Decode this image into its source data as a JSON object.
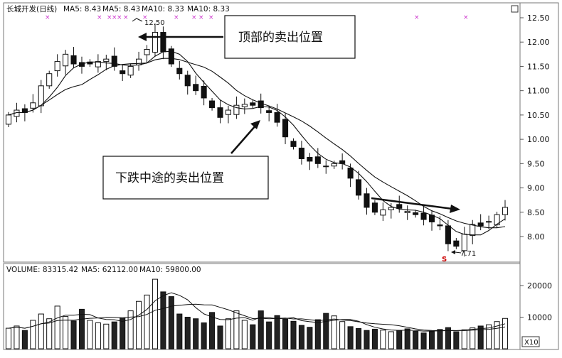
{
  "header": {
    "name": "长城开发(日线)",
    "ma_items": [
      "MA5: 8.43",
      "MA5: 8.43",
      "MA10: 8.33",
      "MA10: 8.33"
    ]
  },
  "volume_header": {
    "volume": "VOLUME: 83315.42",
    "ma5": "MA5: 62112.00",
    "ma10": "MA10: 59800.00"
  },
  "callouts": {
    "top": "顶部的卖出位置",
    "mid": "下跌中途的卖出位置"
  },
  "annotations": {
    "high_label": "12.50",
    "low_label": "7.71",
    "signal_marker": "S",
    "volume_unit": "X10"
  },
  "colors": {
    "up": "#111111",
    "down": "#111111",
    "grid": "#9a9a9a",
    "marker": "#cc33cc",
    "signal": "#cc0000"
  },
  "chart_data": [
    {
      "type": "candlestick",
      "ylim": [
        7.5,
        12.7
      ],
      "y_ticks": [
        "12.50",
        "12.00",
        "11.50",
        "11.00",
        "10.50",
        "10.00",
        "9.50",
        "9.00",
        "8.50",
        "8.00"
      ],
      "y_tick_values": [
        12.5,
        12.0,
        11.5,
        11.0,
        10.5,
        10.0,
        9.5,
        9.0,
        8.5,
        8.0
      ],
      "close_path": [
        10.5,
        10.6,
        10.55,
        10.75,
        11.1,
        11.35,
        11.6,
        11.75,
        11.55,
        11.5,
        11.55,
        11.6,
        11.65,
        11.5,
        11.35,
        11.5,
        11.65,
        11.85,
        12.2,
        11.8,
        11.55,
        11.35,
        11.1,
        11.0,
        10.85,
        10.65,
        10.45,
        10.6,
        10.7,
        10.72,
        10.7,
        10.65,
        10.55,
        10.35,
        10.05,
        9.85,
        9.6,
        9.55,
        9.5,
        9.45,
        9.5,
        9.5,
        9.2,
        8.85,
        8.6,
        8.5,
        8.55,
        8.6,
        8.58,
        8.52,
        8.45,
        8.35,
        8.3,
        8.22,
        7.85,
        7.8,
        8.05,
        8.25,
        8.22,
        8.3,
        8.45,
        8.6
      ],
      "ma_lines": [
        "MA5",
        "MA10"
      ],
      "high_value": 12.5,
      "low_value": 7.71
    },
    {
      "type": "bar",
      "ylim": [
        0,
        24000
      ],
      "y_ticks": [
        "20000",
        "10000"
      ],
      "y_tick_values": [
        20000,
        10000
      ],
      "values": [
        6500,
        7200,
        5800,
        9000,
        11000,
        9500,
        13500,
        10200,
        8800,
        12500,
        9000,
        8200,
        7800,
        8500,
        9800,
        12000,
        15000,
        17000,
        22000,
        18000,
        16500,
        11000,
        10000,
        9500,
        8200,
        11500,
        7200,
        9500,
        12000,
        9000,
        7600,
        12000,
        8500,
        10500,
        9400,
        8700,
        7400,
        6800,
        9200,
        11200,
        10400,
        8600,
        7000,
        6400,
        5800,
        6200,
        5900,
        5400,
        5800,
        6300,
        5500,
        5000,
        5400,
        6100,
        6700,
        5400,
        6000,
        6600,
        7200,
        7600,
        8600,
        9600
      ],
      "ma_lines": [
        "MA5",
        "MA10"
      ]
    }
  ]
}
